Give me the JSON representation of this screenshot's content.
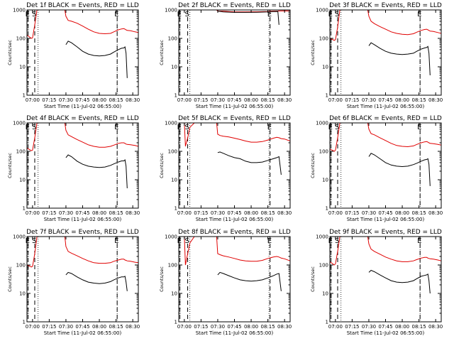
{
  "figure": {
    "xticks": [
      "07:00",
      "07:15",
      "07:30",
      "07:45",
      "08:00",
      "08:15",
      "08:30"
    ],
    "yticks": [
      "1",
      "10",
      "100",
      "1000"
    ],
    "xlabel": "Start Time (11-Jul-02 06:55:00)",
    "ylabel": "Counts/sec"
  },
  "chart_data": [
    {
      "type": "line",
      "title": "Det 1f BLACK = Events, RED = LLD",
      "xlim": [
        "06:55",
        "08:35"
      ],
      "ylim": [
        1,
        1000
      ],
      "yscale": "log",
      "x_minutes": [
        0,
        4,
        5,
        7,
        9,
        12,
        16,
        20,
        24,
        30,
        34,
        35,
        37,
        40,
        45,
        50,
        55,
        60,
        65,
        70,
        75,
        78,
        82,
        85,
        87,
        88,
        89,
        90,
        93,
        97,
        100
      ],
      "series": [
        {
          "name": "LLD",
          "color": "#e00000",
          "values": [
            130,
            100,
            105,
            300,
            1000,
            1000,
            1000,
            1000,
            1000,
            1000,
            1000,
            600,
            430,
            400,
            340,
            270,
            210,
            170,
            150,
            145,
            150,
            170,
            200,
            215,
            220,
            210,
            200,
            190,
            185,
            170,
            160
          ]
        },
        {
          "name": "Events",
          "color": "#000000",
          "values": [
            null,
            null,
            null,
            null,
            null,
            null,
            null,
            null,
            null,
            null,
            null,
            60,
            80,
            70,
            50,
            35,
            28,
            25,
            24,
            25,
            28,
            33,
            40,
            45,
            46,
            50,
            30,
            4,
            null,
            null,
            null
          ]
        }
      ],
      "markers": [
        {
          "label": "E",
          "x": "06:56"
        },
        {
          "label": "S",
          "x": "07:02"
        },
        {
          "label": "E",
          "x": "08:16"
        }
      ]
    },
    {
      "type": "line",
      "title": "Det 2f BLACK = Events, RED = LLD",
      "xlim": [
        "06:55",
        "08:35"
      ],
      "ylim": [
        1,
        1000
      ],
      "yscale": "log",
      "x_minutes": [
        0,
        5,
        6,
        8,
        12,
        20,
        30,
        34,
        35,
        40,
        50,
        60,
        70,
        80,
        85,
        89,
        90,
        95,
        100
      ],
      "series": [
        {
          "name": "LLD",
          "color": "#e00000",
          "values": [
            1000,
            1000,
            1000,
            1000,
            1000,
            1000,
            1000,
            1000,
            900,
            900,
            850,
            850,
            860,
            880,
            900,
            910,
            920,
            930,
            920
          ]
        },
        {
          "name": "Events",
          "color": "#000000",
          "values": [
            null,
            null,
            null,
            null,
            null,
            null,
            null,
            null,
            900,
            850,
            820,
            820,
            830,
            850,
            870,
            880,
            300,
            null,
            null
          ]
        }
      ],
      "markers": [
        {
          "label": "E",
          "x": "06:56"
        },
        {
          "label": "S",
          "x": "07:03"
        },
        {
          "label": "E",
          "x": "08:17"
        }
      ]
    },
    {
      "type": "line",
      "title": "Det 3f BLACK = Events, RED = LLD",
      "xlim": [
        "06:55",
        "08:35"
      ],
      "ylim": [
        1,
        1000
      ],
      "yscale": "log",
      "x_minutes": [
        0,
        4,
        5,
        7,
        9,
        12,
        16,
        20,
        24,
        30,
        34,
        35,
        37,
        40,
        45,
        50,
        55,
        60,
        65,
        70,
        75,
        78,
        82,
        85,
        87,
        88,
        89,
        90,
        93,
        97,
        100
      ],
      "series": [
        {
          "name": "LLD",
          "color": "#e00000",
          "values": [
            100,
            85,
            90,
            250,
            1000,
            1000,
            1000,
            1000,
            1000,
            1000,
            1000,
            600,
            400,
            330,
            260,
            210,
            170,
            150,
            140,
            135,
            145,
            165,
            190,
            205,
            210,
            200,
            190,
            180,
            175,
            160,
            150
          ]
        },
        {
          "name": "Events",
          "color": "#000000",
          "values": [
            null,
            null,
            null,
            null,
            null,
            null,
            null,
            null,
            null,
            null,
            null,
            55,
            70,
            60,
            45,
            35,
            30,
            28,
            27,
            28,
            30,
            35,
            42,
            46,
            48,
            52,
            30,
            5,
            null,
            null,
            null
          ]
        }
      ],
      "markers": [
        {
          "label": "E",
          "x": "06:56"
        },
        {
          "label": "S",
          "x": "07:02"
        },
        {
          "label": "E",
          "x": "08:16"
        }
      ]
    },
    {
      "type": "line",
      "title": "Det 4f BLACK = Events, RED = LLD",
      "xlim": [
        "06:55",
        "08:35"
      ],
      "ylim": [
        1,
        1000
      ],
      "yscale": "log",
      "x_minutes": [
        0,
        4,
        5,
        7,
        9,
        12,
        16,
        20,
        24,
        30,
        34,
        35,
        37,
        40,
        45,
        50,
        55,
        60,
        65,
        70,
        75,
        78,
        82,
        85,
        87,
        88,
        89,
        90,
        93,
        97,
        100
      ],
      "series": [
        {
          "name": "LLD",
          "color": "#e00000",
          "values": [
            130,
            105,
            110,
            300,
            1000,
            1000,
            1000,
            1000,
            1000,
            1000,
            1000,
            550,
            380,
            330,
            260,
            210,
            170,
            150,
            140,
            140,
            150,
            165,
            190,
            200,
            200,
            190,
            180,
            175,
            170,
            160,
            150
          ]
        },
        {
          "name": "Events",
          "color": "#000000",
          "values": [
            null,
            null,
            null,
            null,
            null,
            null,
            null,
            null,
            null,
            null,
            null,
            60,
            75,
            65,
            45,
            35,
            30,
            28,
            27,
            28,
            32,
            36,
            42,
            46,
            46,
            50,
            30,
            5,
            null,
            null,
            null
          ]
        }
      ],
      "markers": [
        {
          "label": "E",
          "x": "06:56"
        },
        {
          "label": "S",
          "x": "07:02"
        },
        {
          "label": "E",
          "x": "08:16"
        }
      ]
    },
    {
      "type": "line",
      "title": "Det 5f BLACK = Events, RED = LLD",
      "xlim": [
        "06:55",
        "08:35"
      ],
      "ylim": [
        1,
        1000
      ],
      "yscale": "log",
      "x_minutes": [
        0,
        5,
        6,
        8,
        10,
        14,
        18,
        24,
        30,
        34,
        35,
        37,
        40,
        45,
        50,
        55,
        60,
        65,
        70,
        75,
        80,
        85,
        88,
        90,
        92,
        95,
        100
      ],
      "series": [
        {
          "name": "LLD",
          "color": "#e00000",
          "values": [
            1000,
            1000,
            150,
            300,
            700,
            1000,
            1000,
            1000,
            1000,
            1000,
            400,
            360,
            340,
            320,
            290,
            260,
            230,
            210,
            210,
            220,
            250,
            290,
            310,
            300,
            280,
            270,
            230
          ]
        },
        {
          "name": "Events",
          "color": "#000000",
          "values": [
            null,
            null,
            null,
            null,
            null,
            null,
            null,
            null,
            null,
            null,
            90,
            95,
            85,
            70,
            60,
            55,
            45,
            40,
            40,
            42,
            48,
            55,
            60,
            65,
            15,
            null,
            null
          ]
        }
      ],
      "markers": [
        {
          "label": "E",
          "x": "06:56"
        },
        {
          "label": "S",
          "x": "07:03"
        },
        {
          "label": "E",
          "x": "08:17"
        }
      ]
    },
    {
      "type": "line",
      "title": "Det 6f BLACK = Events, RED = LLD",
      "xlim": [
        "06:55",
        "08:35"
      ],
      "ylim": [
        1,
        1000
      ],
      "yscale": "log",
      "x_minutes": [
        0,
        4,
        5,
        7,
        9,
        12,
        16,
        20,
        24,
        30,
        34,
        35,
        37,
        40,
        45,
        50,
        55,
        60,
        65,
        70,
        75,
        78,
        82,
        85,
        87,
        88,
        89,
        90,
        93,
        97,
        100
      ],
      "series": [
        {
          "name": "LLD",
          "color": "#e00000",
          "values": [
            120,
            100,
            110,
            300,
            1000,
            1000,
            1000,
            1000,
            1000,
            1000,
            1000,
            600,
            420,
            380,
            300,
            240,
            190,
            160,
            150,
            145,
            155,
            175,
            200,
            215,
            220,
            210,
            200,
            190,
            185,
            175,
            165
          ]
        },
        {
          "name": "Events",
          "color": "#000000",
          "values": [
            null,
            null,
            null,
            null,
            null,
            null,
            null,
            null,
            null,
            null,
            null,
            65,
            85,
            75,
            55,
            40,
            33,
            30,
            29,
            30,
            34,
            38,
            45,
            50,
            52,
            55,
            35,
            6,
            null,
            null,
            null
          ]
        }
      ],
      "markers": [
        {
          "label": "E",
          "x": "06:56"
        },
        {
          "label": "S",
          "x": "07:02"
        },
        {
          "label": "E",
          "x": "08:16"
        }
      ]
    },
    {
      "type": "line",
      "title": "Det 7f BLACK = Events, RED = LLD",
      "xlim": [
        "06:55",
        "08:35"
      ],
      "ylim": [
        1,
        1000
      ],
      "yscale": "log",
      "x_minutes": [
        0,
        4,
        5,
        7,
        9,
        12,
        16,
        20,
        24,
        30,
        34,
        35,
        37,
        40,
        45,
        50,
        55,
        60,
        65,
        70,
        75,
        78,
        82,
        85,
        87,
        88,
        89,
        90,
        93,
        97,
        100
      ],
      "series": [
        {
          "name": "LLD",
          "color": "#e00000",
          "values": [
            100,
            85,
            90,
            250,
            1000,
            1000,
            1000,
            1000,
            1000,
            1000,
            1000,
            450,
            300,
            260,
            210,
            170,
            140,
            120,
            115,
            115,
            120,
            135,
            150,
            160,
            160,
            150,
            145,
            140,
            135,
            125,
            120
          ]
        },
        {
          "name": "Events",
          "color": "#000000",
          "values": [
            null,
            null,
            null,
            null,
            null,
            null,
            null,
            null,
            null,
            null,
            null,
            45,
            55,
            50,
            38,
            30,
            25,
            23,
            22,
            23,
            26,
            30,
            35,
            38,
            38,
            40,
            25,
            12,
            null,
            null,
            null
          ]
        }
      ],
      "markers": [
        {
          "label": "E",
          "x": "06:56"
        },
        {
          "label": "S",
          "x": "07:02"
        },
        {
          "label": "E",
          "x": "08:16"
        }
      ]
    },
    {
      "type": "line",
      "title": "Det 8f BLACK = Events, RED = LLD",
      "xlim": [
        "06:55",
        "08:35"
      ],
      "ylim": [
        1,
        1000
      ],
      "yscale": "log",
      "x_minutes": [
        0,
        5,
        6,
        8,
        10,
        14,
        18,
        24,
        30,
        34,
        35,
        37,
        40,
        45,
        50,
        55,
        60,
        65,
        70,
        75,
        80,
        85,
        88,
        90,
        92,
        95,
        100
      ],
      "series": [
        {
          "name": "LLD",
          "color": "#e00000",
          "values": [
            1000,
            1000,
            100,
            250,
            600,
            1000,
            1000,
            1000,
            1000,
            1000,
            250,
            230,
            210,
            190,
            170,
            150,
            140,
            135,
            135,
            145,
            170,
            190,
            200,
            190,
            175,
            165,
            140
          ]
        },
        {
          "name": "Events",
          "color": "#000000",
          "values": [
            null,
            null,
            null,
            null,
            null,
            null,
            null,
            null,
            null,
            null,
            45,
            55,
            50,
            42,
            35,
            30,
            28,
            27,
            28,
            30,
            35,
            42,
            48,
            50,
            12,
            null,
            null
          ]
        }
      ],
      "markers": [
        {
          "label": "E",
          "x": "06:56"
        },
        {
          "label": "S",
          "x": "07:03"
        },
        {
          "label": "E",
          "x": "08:17"
        }
      ]
    },
    {
      "type": "line",
      "title": "Det 9f BLACK = Events, RED = LLD",
      "xlim": [
        "06:55",
        "08:35"
      ],
      "ylim": [
        1,
        1000
      ],
      "yscale": "log",
      "x_minutes": [
        0,
        4,
        5,
        7,
        9,
        12,
        16,
        20,
        24,
        30,
        34,
        35,
        37,
        40,
        45,
        50,
        55,
        60,
        65,
        70,
        75,
        78,
        82,
        85,
        87,
        88,
        89,
        90,
        93,
        97,
        100
      ],
      "series": [
        {
          "name": "LLD",
          "color": "#e00000",
          "values": [
            130,
            100,
            110,
            300,
            1000,
            1000,
            1000,
            1000,
            1000,
            1000,
            1000,
            550,
            360,
            300,
            240,
            190,
            160,
            140,
            130,
            130,
            140,
            155,
            175,
            185,
            185,
            175,
            170,
            165,
            160,
            150,
            140
          ]
        },
        {
          "name": "Events",
          "color": "#000000",
          "values": [
            null,
            null,
            null,
            null,
            null,
            null,
            null,
            null,
            null,
            null,
            null,
            55,
            65,
            58,
            45,
            35,
            28,
            25,
            24,
            25,
            28,
            33,
            40,
            43,
            45,
            48,
            28,
            10,
            null,
            null,
            null
          ]
        }
      ],
      "markers": [
        {
          "label": "E",
          "x": "06:56"
        },
        {
          "label": "S",
          "x": "07:02"
        },
        {
          "label": "E",
          "x": "08:16"
        }
      ]
    }
  ]
}
